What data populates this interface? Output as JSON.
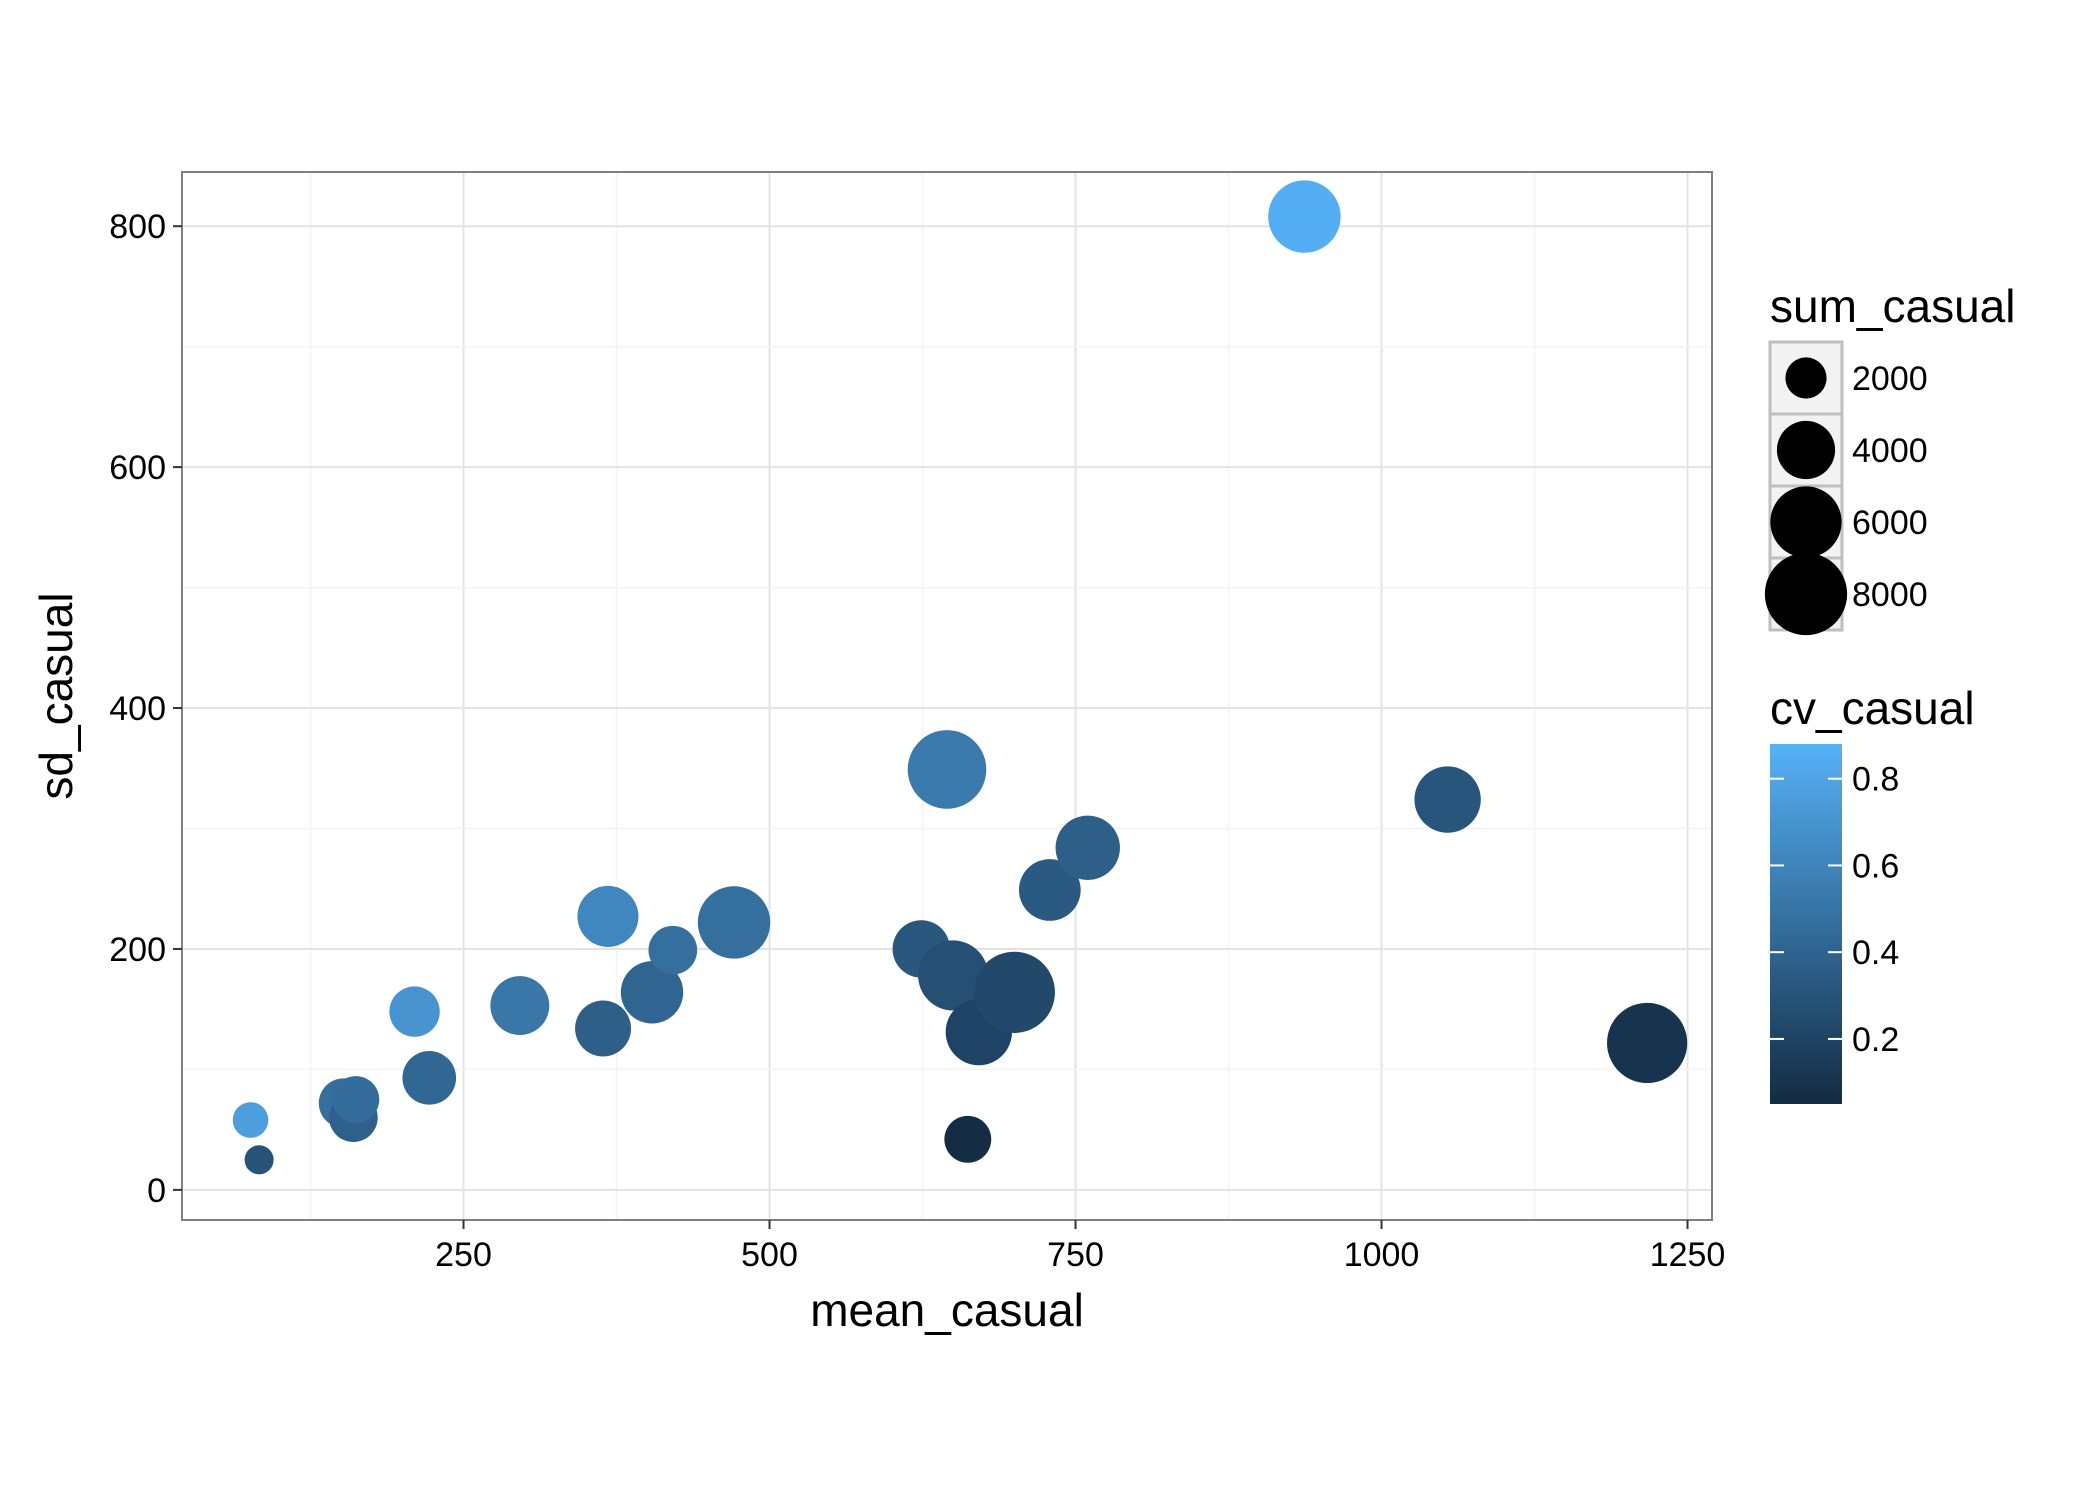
{
  "chart_data": {
    "type": "scatter",
    "title": "",
    "xlabel": "mean_casual",
    "ylabel": "sd_casual",
    "xlim": [
      20,
      1270
    ],
    "ylim": [
      -25,
      845
    ],
    "x_ticks": [
      250,
      500,
      750,
      1000,
      1250
    ],
    "y_ticks": [
      0,
      200,
      400,
      600,
      800
    ],
    "grid": true,
    "legend_position": "right",
    "size_legend": {
      "title": "sum_casual",
      "labels": [
        "2000",
        "4000",
        "6000",
        "8000"
      ],
      "values": [
        2000,
        4000,
        6000,
        8000
      ]
    },
    "color_legend": {
      "title": "cv_casual",
      "labels": [
        "0.2",
        "0.4",
        "0.6",
        "0.8"
      ],
      "values": [
        0.2,
        0.4,
        0.6,
        0.8
      ],
      "range": [
        0.05,
        0.88
      ],
      "low_color": "#132B43",
      "high_color": "#56B1F7"
    },
    "points": [
      {
        "x": 76,
        "y": 58,
        "size": 1500,
        "color": 0.76
      },
      {
        "x": 83,
        "y": 25,
        "size": 1000,
        "color": 0.3
      },
      {
        "x": 152,
        "y": 72,
        "size": 2900,
        "color": 0.47
      },
      {
        "x": 160,
        "y": 60,
        "size": 2800,
        "color": 0.38
      },
      {
        "x": 162,
        "y": 75,
        "size": 2600,
        "color": 0.46
      },
      {
        "x": 210,
        "y": 148,
        "size": 3000,
        "color": 0.7
      },
      {
        "x": 222,
        "y": 93,
        "size": 3400,
        "color": 0.42
      },
      {
        "x": 296,
        "y": 153,
        "size": 4100,
        "color": 0.52
      },
      {
        "x": 364,
        "y": 134,
        "size": 3700,
        "color": 0.37
      },
      {
        "x": 368,
        "y": 227,
        "size": 4400,
        "color": 0.62
      },
      {
        "x": 404,
        "y": 164,
        "size": 4600,
        "color": 0.41
      },
      {
        "x": 421,
        "y": 199,
        "size": 2800,
        "color": 0.47
      },
      {
        "x": 471,
        "y": 222,
        "size": 6200,
        "color": 0.47
      },
      {
        "x": 624,
        "y": 200,
        "size": 3900,
        "color": 0.32
      },
      {
        "x": 645,
        "y": 349,
        "size": 7300,
        "color": 0.54
      },
      {
        "x": 650,
        "y": 178,
        "size": 5800,
        "color": 0.27
      },
      {
        "x": 662,
        "y": 42,
        "size": 2600,
        "color": 0.06
      },
      {
        "x": 671,
        "y": 131,
        "size": 5200,
        "color": 0.2
      },
      {
        "x": 700,
        "y": 164,
        "size": 7800,
        "color": 0.23
      },
      {
        "x": 729,
        "y": 249,
        "size": 4500,
        "color": 0.34
      },
      {
        "x": 760,
        "y": 284,
        "size": 4900,
        "color": 0.37
      },
      {
        "x": 937,
        "y": 808,
        "size": 6200,
        "color": 0.86
      },
      {
        "x": 1054,
        "y": 324,
        "size": 5200,
        "color": 0.31
      },
      {
        "x": 1217,
        "y": 122,
        "size": 7600,
        "color": 0.1
      }
    ]
  }
}
